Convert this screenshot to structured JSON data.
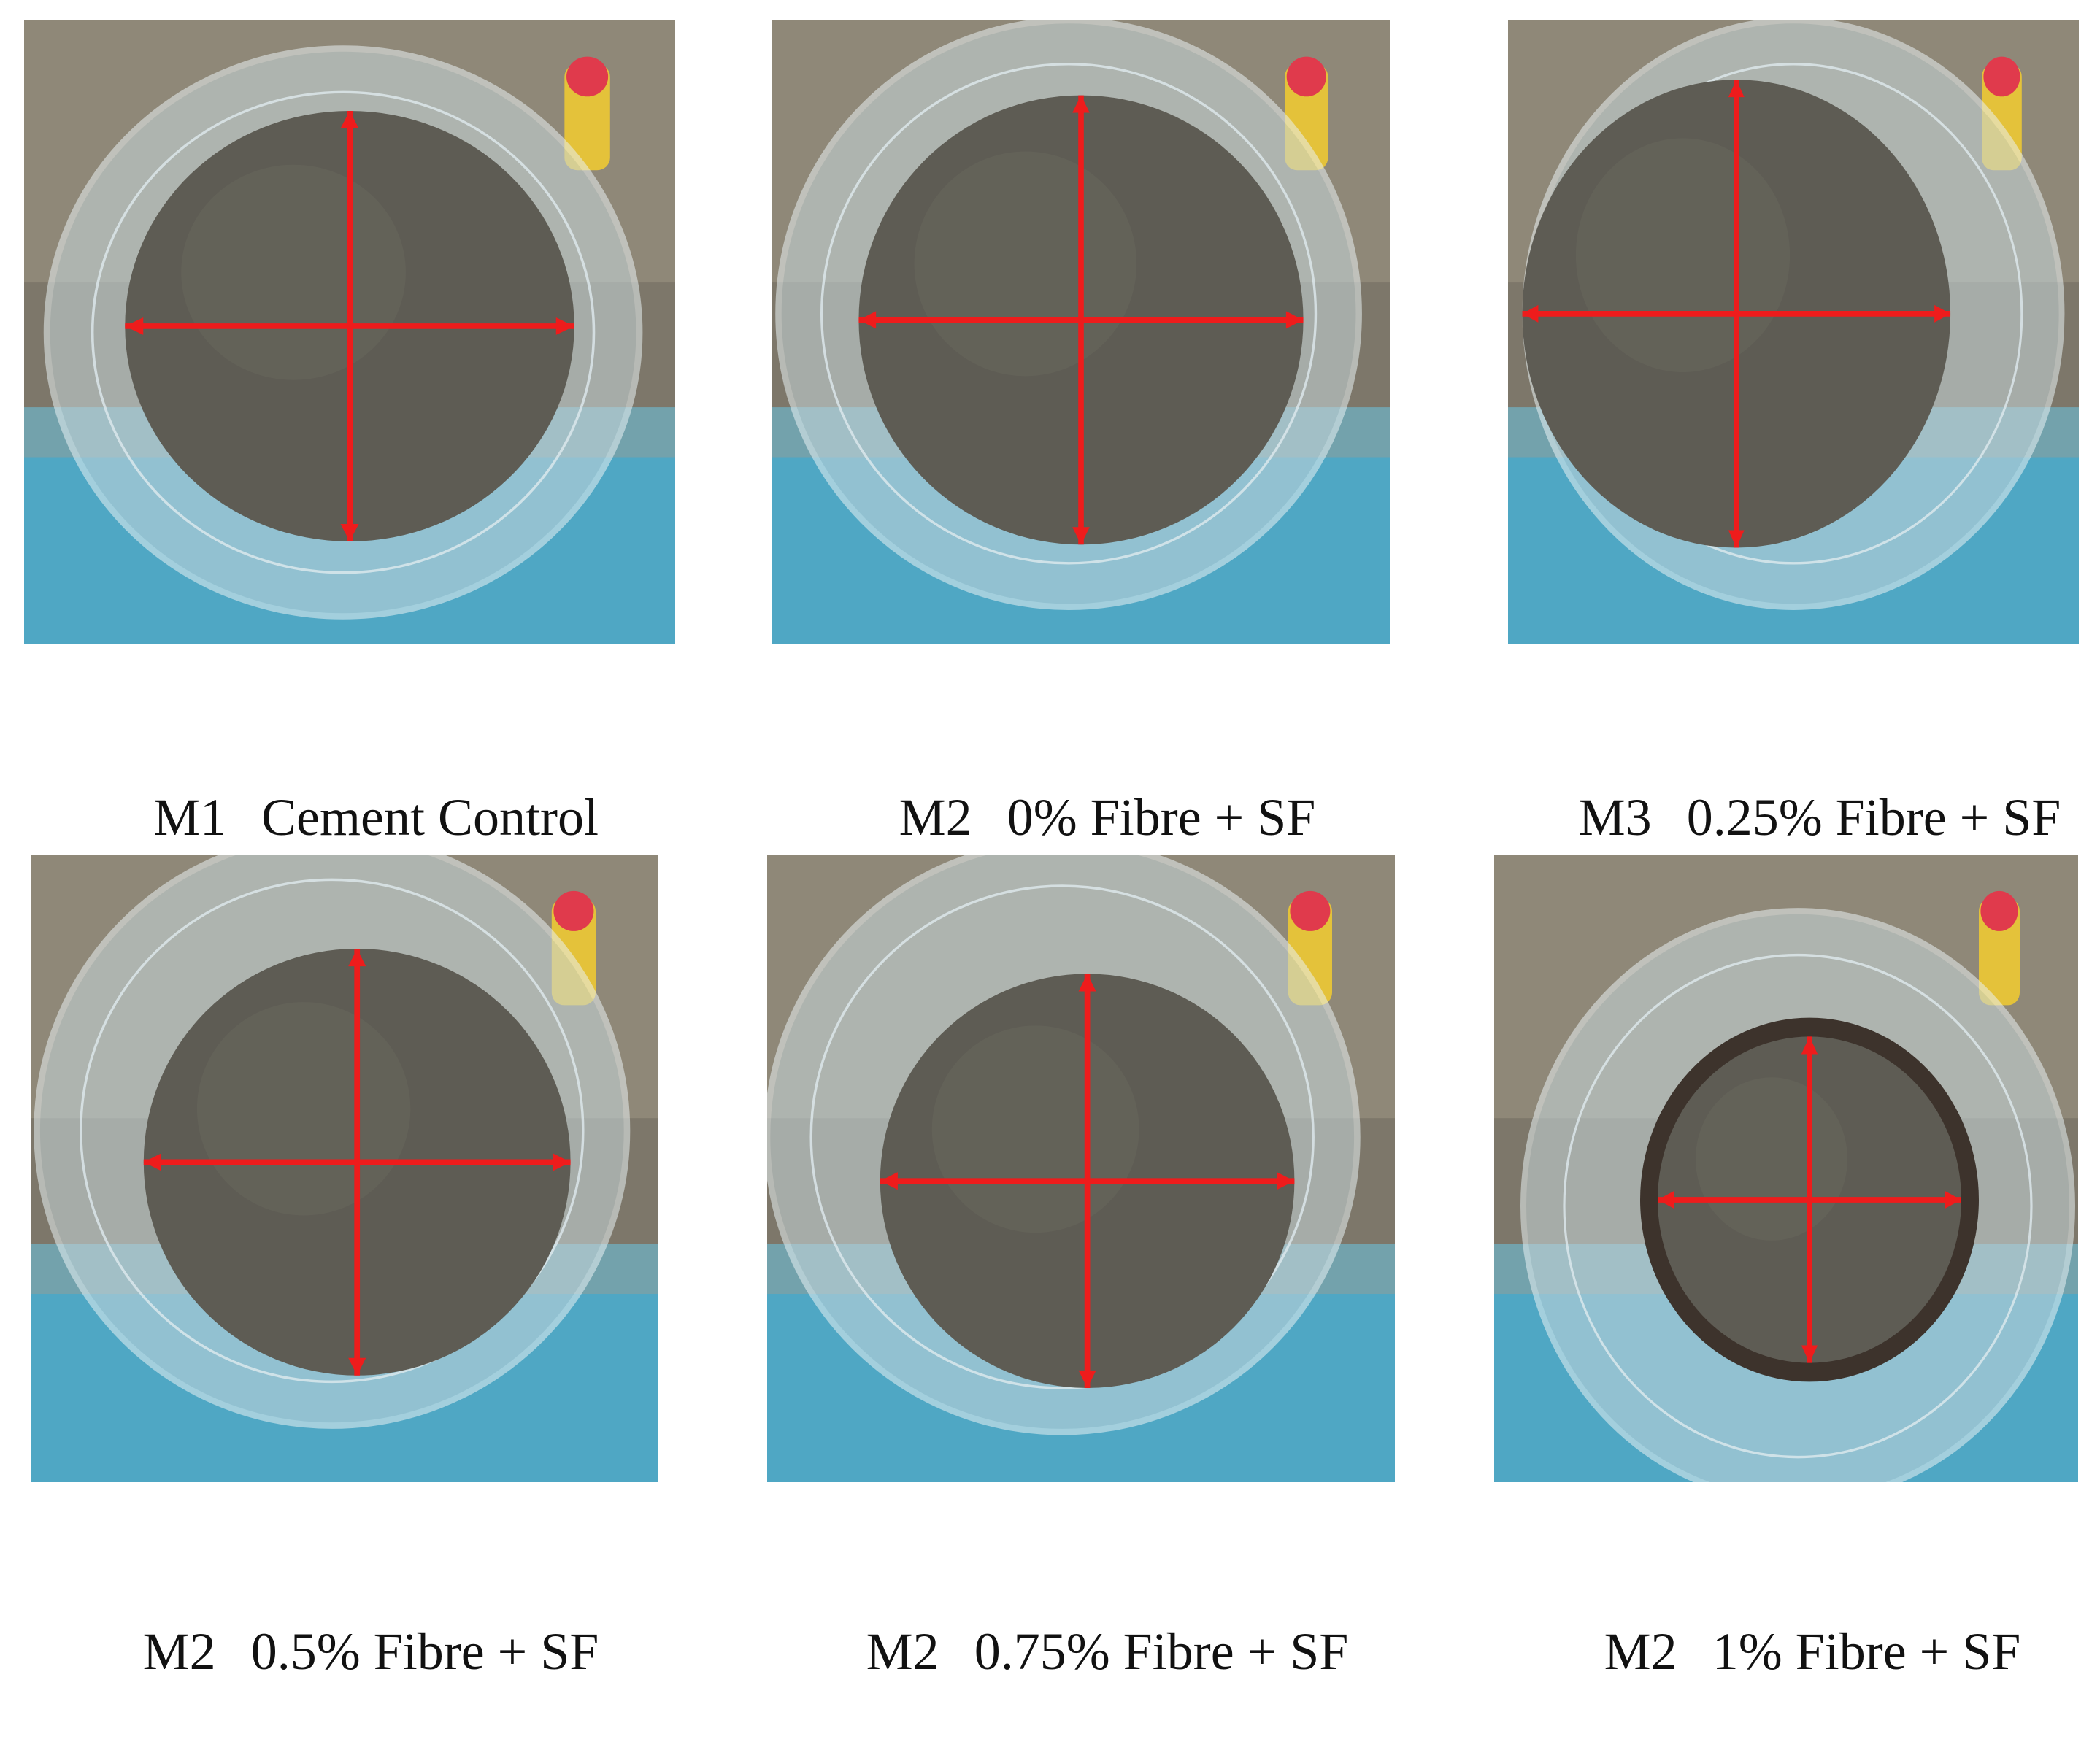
{
  "figure": {
    "background": "#ffffff",
    "arrow_color": "#ee1c1c",
    "panels": [
      {
        "code": "M1",
        "label": "Cement Control"
      },
      {
        "code": "M2",
        "label": "0% Fibre + SF"
      },
      {
        "code": "M3",
        "label": "0.25% Fibre + SF"
      },
      {
        "code": "M2",
        "label": "0.5% Fibre + SF"
      },
      {
        "code": "M2",
        "label": "0.75% Fibre + SF"
      },
      {
        "code": "M2",
        "label": "1% Fibre + SF"
      }
    ]
  }
}
